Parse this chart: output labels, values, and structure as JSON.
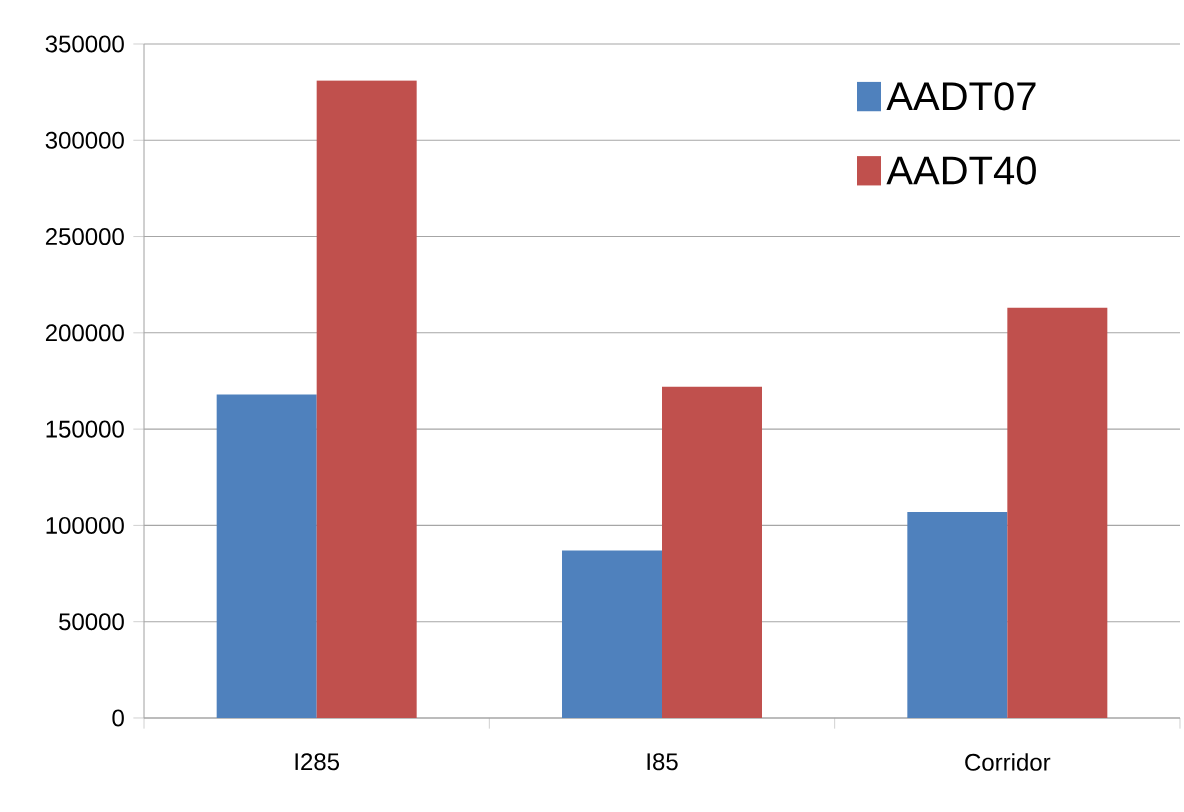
{
  "chart_data": {
    "type": "bar",
    "categories": [
      "I285",
      "I85",
      "Corridor"
    ],
    "series": [
      {
        "name": "AADT07",
        "color": "#4f81bd",
        "values": [
          168000,
          87000,
          107000
        ]
      },
      {
        "name": "AADT40",
        "color": "#c0504d",
        "values": [
          331000,
          172000,
          213000
        ]
      }
    ],
    "ylim": [
      0,
      350000
    ],
    "yticks": [
      0,
      50000,
      100000,
      150000,
      200000,
      250000,
      300000,
      350000
    ],
    "grid": "y",
    "legend": "top right"
  }
}
